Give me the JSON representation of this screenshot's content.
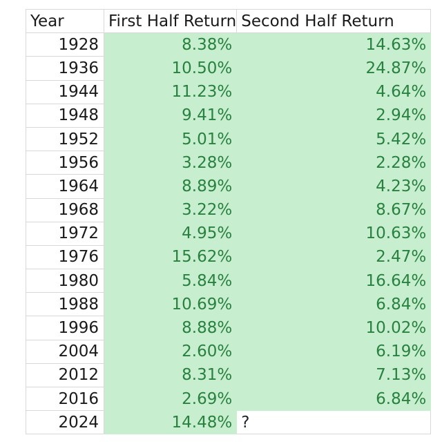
{
  "page": {
    "background": "#ffffff"
  },
  "colors": {
    "highlight_fill": "#c8eed0",
    "highlight_text": "#28813e",
    "grid_line": "#d8d8d8",
    "body_text": "#1a1a1a"
  },
  "table": {
    "columns": [
      "Year",
      "First Half Return",
      "Second Half Return"
    ],
    "rows": [
      {
        "year": "1928",
        "first_half": "8.38%",
        "second_half": "14.63%",
        "second_plain": false
      },
      {
        "year": "1936",
        "first_half": "10.50%",
        "second_half": "24.87%",
        "second_plain": false
      },
      {
        "year": "1944",
        "first_half": "11.23%",
        "second_half": "4.64%",
        "second_plain": false
      },
      {
        "year": "1948",
        "first_half": "9.41%",
        "second_half": "2.94%",
        "second_plain": false
      },
      {
        "year": "1952",
        "first_half": "5.01%",
        "second_half": "5.42%",
        "second_plain": false
      },
      {
        "year": "1956",
        "first_half": "3.28%",
        "second_half": "2.28%",
        "second_plain": false
      },
      {
        "year": "1964",
        "first_half": "8.89%",
        "second_half": "4.23%",
        "second_plain": false
      },
      {
        "year": "1968",
        "first_half": "3.22%",
        "second_half": "8.67%",
        "second_plain": false
      },
      {
        "year": "1972",
        "first_half": "4.95%",
        "second_half": "10.63%",
        "second_plain": false
      },
      {
        "year": "1976",
        "first_half": "15.62%",
        "second_half": "2.47%",
        "second_plain": false
      },
      {
        "year": "1980",
        "first_half": "5.84%",
        "second_half": "16.64%",
        "second_plain": false
      },
      {
        "year": "1988",
        "first_half": "10.69%",
        "second_half": "6.84%",
        "second_plain": false
      },
      {
        "year": "1996",
        "first_half": "8.88%",
        "second_half": "10.02%",
        "second_plain": false
      },
      {
        "year": "2004",
        "first_half": "2.60%",
        "second_half": "6.19%",
        "second_plain": false
      },
      {
        "year": "2012",
        "first_half": "8.31%",
        "second_half": "7.13%",
        "second_plain": false
      },
      {
        "year": "2016",
        "first_half": "2.69%",
        "second_half": "6.84%",
        "second_plain": false
      },
      {
        "year": "2024",
        "first_half": "14.48%",
        "second_half": "?",
        "second_plain": true
      }
    ]
  },
  "chart_data": {
    "type": "table",
    "title": "",
    "columns": [
      "Year",
      "First Half Return",
      "Second Half Return"
    ],
    "rows": [
      [
        "1928",
        "8.38%",
        "14.63%"
      ],
      [
        "1936",
        "10.50%",
        "24.87%"
      ],
      [
        "1944",
        "11.23%",
        "4.64%"
      ],
      [
        "1948",
        "9.41%",
        "2.94%"
      ],
      [
        "1952",
        "5.01%",
        "5.42%"
      ],
      [
        "1956",
        "3.28%",
        "2.28%"
      ],
      [
        "1964",
        "8.89%",
        "4.23%"
      ],
      [
        "1968",
        "3.22%",
        "8.67%"
      ],
      [
        "1972",
        "4.95%",
        "10.63%"
      ],
      [
        "1976",
        "15.62%",
        "2.47%"
      ],
      [
        "1980",
        "5.84%",
        "16.64%"
      ],
      [
        "1988",
        "10.69%",
        "6.84%"
      ],
      [
        "1996",
        "8.88%",
        "10.02%"
      ],
      [
        "2004",
        "2.60%",
        "6.19%"
      ],
      [
        "2012",
        "8.31%",
        "7.13%"
      ],
      [
        "2016",
        "2.69%",
        "6.84%"
      ],
      [
        "2024",
        "14.48%",
        "?"
      ]
    ],
    "highlighted_cells": "All First Half Return and Second Half Return cells green except 2024 Second Half Return which shows ?",
    "legend_position": "none",
    "grid": true
  }
}
